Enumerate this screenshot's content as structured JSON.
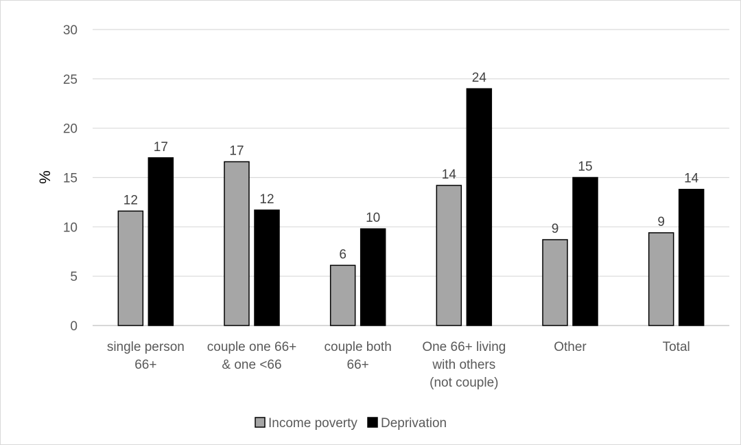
{
  "chart_data": {
    "type": "bar",
    "categories": [
      [
        "single person",
        "66+"
      ],
      [
        "couple one 66+",
        "& one <66"
      ],
      [
        "couple both",
        "66+"
      ],
      [
        "One 66+ living",
        "with others",
        "(not couple)"
      ],
      [
        "Other"
      ],
      [
        "Total"
      ]
    ],
    "series": [
      {
        "name": "Income poverty",
        "values": [
          11.6,
          16.6,
          6.1,
          14.2,
          8.7,
          9.4
        ],
        "labels": [
          "12",
          "17",
          "6",
          "14",
          "9",
          "9"
        ],
        "color": "#a6a6a6"
      },
      {
        "name": "Deprivation",
        "values": [
          17.0,
          11.7,
          9.8,
          24.0,
          15.0,
          13.8
        ],
        "labels": [
          "17",
          "12",
          "10",
          "24",
          "15",
          "14"
        ],
        "color": "#000000"
      }
    ],
    "title": "",
    "xlabel": "",
    "ylabel": "%",
    "ylim": [
      0,
      30
    ],
    "yticks": [
      "0",
      "5",
      "10",
      "15",
      "20",
      "25",
      "30"
    ],
    "grid": true,
    "legend_position": "bottom"
  }
}
